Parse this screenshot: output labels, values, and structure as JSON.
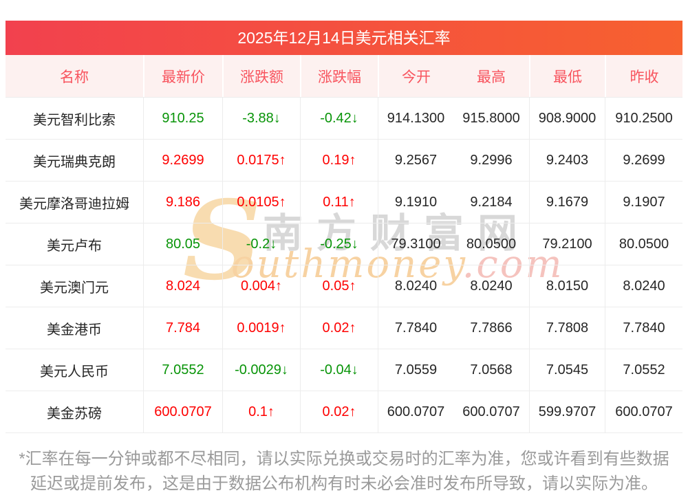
{
  "page": {
    "title": "2025年12月14日美元相关汇率",
    "footnote": "*汇率在每一分钟或都不尽相同，请以实际兑换或交易时的汇率为准，您或许看到有些数据延迟或提前发布，这是由于数据公布机构有时未必会准时发布所导致，请以实际为准。"
  },
  "watermark": {
    "s": "S",
    "cn": "南方财富网",
    "en": "outhmoney",
    "dot_com": ".com"
  },
  "colors": {
    "up": "#fe0000",
    "down": "#089408",
    "title_gradient_left": "#f2414e",
    "title_gradient_right": "#f7612f",
    "header_bg": "#fdf1f0",
    "header_text": "#f8545e"
  },
  "chart_data": {
    "type": "table",
    "title": "2025年12月14日美元相关汇率",
    "columns": [
      "名称",
      "最新价",
      "涨跌额",
      "涨跌幅",
      "今开",
      "最高",
      "最低",
      "昨收"
    ],
    "rows": [
      {
        "name": "美元智利比索",
        "last": "910.25",
        "change": "-3.88↓",
        "change_pct": "-0.42↓",
        "open": "914.1300",
        "high": "915.8000",
        "low": "908.9000",
        "prev_close": "910.2500",
        "trend": "down"
      },
      {
        "name": "美元瑞典克朗",
        "last": "9.2699",
        "change": "0.0175↑",
        "change_pct": "0.19↑",
        "open": "9.2567",
        "high": "9.2996",
        "low": "9.2403",
        "prev_close": "9.2699",
        "trend": "up"
      },
      {
        "name": "美元摩洛哥迪拉姆",
        "last": "9.186",
        "change": "0.0105↑",
        "change_pct": "0.11↑",
        "open": "9.1910",
        "high": "9.2184",
        "low": "9.1679",
        "prev_close": "9.1907",
        "trend": "up"
      },
      {
        "name": "美元卢布",
        "last": "80.05",
        "change": "-0.2↓",
        "change_pct": "-0.25↓",
        "open": "79.3100",
        "high": "80.0500",
        "low": "79.2100",
        "prev_close": "80.0500",
        "trend": "down"
      },
      {
        "name": "美元澳门元",
        "last": "8.024",
        "change": "0.004↑",
        "change_pct": "0.05↑",
        "open": "8.0240",
        "high": "8.0240",
        "low": "8.0150",
        "prev_close": "8.0240",
        "trend": "up"
      },
      {
        "name": "美金港币",
        "last": "7.784",
        "change": "0.0019↑",
        "change_pct": "0.02↑",
        "open": "7.7840",
        "high": "7.7866",
        "low": "7.7808",
        "prev_close": "7.7840",
        "trend": "up"
      },
      {
        "name": "美元人民币",
        "last": "7.0552",
        "change": "-0.0029↓",
        "change_pct": "-0.04↓",
        "open": "7.0559",
        "high": "7.0568",
        "low": "7.0545",
        "prev_close": "7.0552",
        "trend": "down"
      },
      {
        "name": "美金苏磅",
        "last": "600.0707",
        "change": "0.1↑",
        "change_pct": "0.02↑",
        "open": "600.0707",
        "high": "600.0707",
        "low": "599.9707",
        "prev_close": "600.0707",
        "trend": "up"
      }
    ]
  }
}
